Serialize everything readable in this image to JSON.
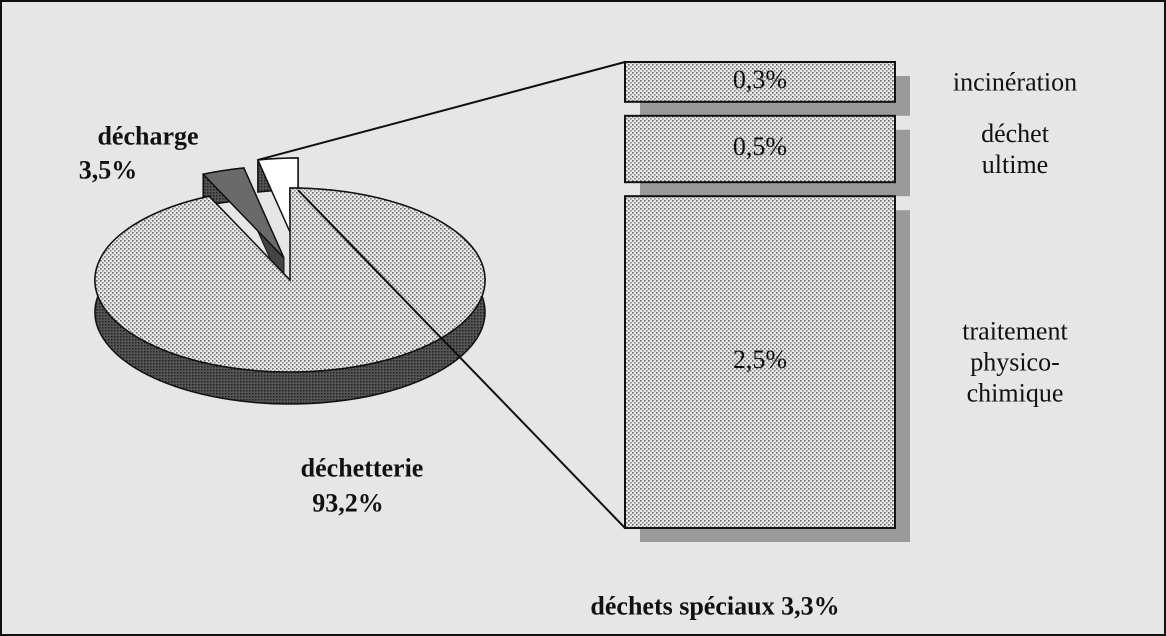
{
  "chart_data": {
    "type": "pie-of-bar",
    "pie": {
      "categories": [
        "décharge",
        "déchets spéciaux",
        "déchetterie"
      ],
      "values": [
        3.5,
        3.3,
        93.2
      ],
      "value_labels": [
        "3,5%",
        "3,3%",
        "93,2%"
      ],
      "colors": [
        "#6a6a6a",
        "#ffffff",
        "#c4c4c4"
      ]
    },
    "bar": {
      "categories": [
        "incinération",
        "déchet ultime",
        "traitement physico-chimique"
      ],
      "values": [
        0.3,
        0.5,
        2.5
      ],
      "value_labels": [
        "0,3%",
        "0,5%",
        "2,5%"
      ],
      "color": "#d2d2d2"
    }
  }
}
